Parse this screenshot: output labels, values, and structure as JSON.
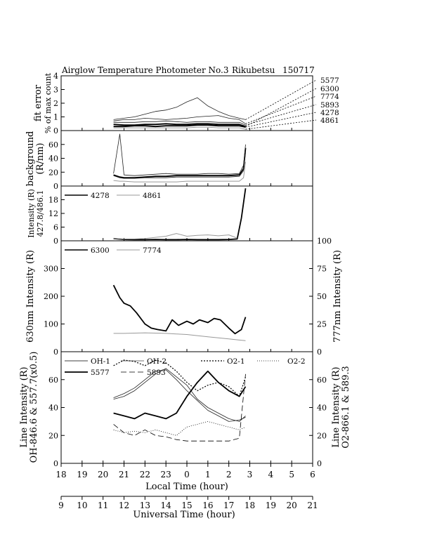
{
  "header": {
    "title": "Airglow Temperature Photometer No.3",
    "site": "Rikubetsu",
    "date": "150717"
  },
  "bottom_axes": {
    "local_label": "Local Time (hour)",
    "local_ticks": [
      "18",
      "19",
      "20",
      "21",
      "22",
      "23",
      "0",
      "1",
      "2",
      "3",
      "4",
      "5",
      "6"
    ],
    "ut_label": "Universal Time (hour)",
    "ut_ticks": [
      "9",
      "10",
      "11",
      "12",
      "13",
      "14",
      "15",
      "16",
      "17",
      "18",
      "19",
      "20",
      "21"
    ]
  },
  "chart_data": [
    {
      "id": "fit_error",
      "type": "line",
      "ylabel_lines": [
        "fit error",
        "% of max count"
      ],
      "yticks": [
        0,
        1,
        2,
        3,
        4
      ],
      "ylim": [
        0,
        4
      ],
      "xlim": [
        18,
        30
      ],
      "annotation_labels": [
        "5577",
        "6300",
        "7774",
        "5893",
        "4278",
        "4861"
      ],
      "series": [
        {
          "name": "5577",
          "style": "thin",
          "x": [
            20.5,
            21.0,
            21.5,
            22.0,
            22.5,
            23.0,
            23.5,
            24.0,
            24.5,
            25.0,
            25.5,
            26.0,
            26.5,
            26.8
          ],
          "y": [
            0.8,
            0.9,
            1.0,
            1.2,
            1.4,
            1.5,
            1.7,
            2.1,
            2.4,
            1.8,
            1.4,
            1.1,
            0.9,
            0.8
          ]
        },
        {
          "name": "6300",
          "style": "thick",
          "x": [
            20.5,
            21.0,
            21.5,
            22.0,
            22.5,
            23.0,
            23.5,
            24.0,
            24.5,
            25.0,
            25.5,
            26.0,
            26.5,
            26.8
          ],
          "y": [
            0.45,
            0.4,
            0.4,
            0.45,
            0.45,
            0.5,
            0.45,
            0.45,
            0.5,
            0.5,
            0.45,
            0.45,
            0.45,
            0.3
          ]
        },
        {
          "name": "7774",
          "style": "thin",
          "x": [
            20.5,
            21.0,
            21.5,
            22.0,
            22.5,
            23.0,
            23.5,
            24.0,
            24.5,
            25.0,
            25.5,
            26.0,
            26.5,
            26.8
          ],
          "y": [
            0.7,
            0.8,
            0.8,
            0.9,
            0.85,
            0.8,
            0.85,
            0.9,
            1.0,
            1.05,
            1.1,
            0.9,
            0.8,
            0.5
          ]
        },
        {
          "name": "5893",
          "style": "thin",
          "x": [
            20.5,
            21.0,
            21.5,
            22.0,
            22.5,
            23.0,
            23.5,
            24.0,
            24.5,
            25.0,
            25.5,
            26.0,
            26.5,
            26.8
          ],
          "y": [
            0.6,
            0.6,
            0.6,
            0.65,
            0.65,
            0.7,
            0.65,
            0.6,
            0.65,
            0.65,
            0.6,
            0.6,
            0.6,
            0.4
          ]
        },
        {
          "name": "4278",
          "style": "thick",
          "x": [
            20.5,
            21.0,
            21.5,
            22.0,
            22.5,
            23.0,
            23.5,
            24.0,
            24.5,
            25.0,
            25.5,
            26.0,
            26.5,
            26.8
          ],
          "y": [
            0.3,
            0.3,
            0.35,
            0.35,
            0.3,
            0.35,
            0.35,
            0.35,
            0.4,
            0.4,
            0.35,
            0.35,
            0.35,
            0.25
          ]
        },
        {
          "name": "4861",
          "style": "gray",
          "x": [
            20.5,
            21.0,
            21.5,
            22.0,
            22.5,
            23.0,
            23.5,
            24.0,
            24.5,
            25.0,
            25.5,
            26.0,
            26.5,
            26.8
          ],
          "y": [
            0.2,
            0.2,
            0.2,
            0.2,
            0.2,
            0.2,
            0.2,
            0.2,
            0.25,
            0.25,
            0.2,
            0.2,
            0.2,
            0.1
          ]
        }
      ]
    },
    {
      "id": "background",
      "type": "line",
      "ylabel_lines": [
        "background",
        "(R/nm)"
      ],
      "yticks": [
        0,
        20,
        40,
        60
      ],
      "ylim": [
        0,
        80
      ],
      "xlim": [
        18,
        30
      ],
      "series": [
        {
          "name": "6300",
          "style": "thick",
          "x": [
            20.5,
            20.8,
            21.0,
            21.5,
            22.0,
            22.5,
            23.0,
            23.5,
            24.0,
            24.5,
            25.0,
            25.5,
            26.0,
            26.5,
            26.7,
            26.8
          ],
          "y": [
            16,
            13,
            12,
            12,
            13,
            14,
            14,
            15,
            15,
            15,
            15,
            15,
            15,
            16,
            25,
            55
          ]
        },
        {
          "name": "5577",
          "style": "thin",
          "x": [
            20.5,
            20.8,
            21.0,
            21.5,
            22.0,
            22.5,
            23.0,
            23.5,
            24.0,
            24.5,
            25.0,
            25.5,
            26.0,
            26.5,
            26.7,
            26.8
          ],
          "y": [
            18,
            75,
            16,
            15,
            16,
            17,
            18,
            17,
            17,
            17,
            18,
            18,
            17,
            18,
            30,
            60
          ]
        },
        {
          "name": "7774",
          "style": "thin",
          "x": [
            20.5,
            20.8,
            21.0,
            21.5,
            22.0,
            22.5,
            23.0,
            23.5,
            24.0,
            24.5,
            25.0,
            25.5,
            26.0,
            26.5,
            26.7,
            26.8
          ],
          "y": [
            15,
            12,
            11,
            11,
            12,
            12,
            12,
            13,
            13,
            13,
            13,
            13,
            13,
            14,
            22,
            48
          ]
        },
        {
          "name": "4861",
          "style": "gray",
          "x": [
            20.5,
            20.8,
            21.0,
            21.5,
            22.0,
            22.5,
            23.0,
            23.5,
            24.0,
            24.5,
            25.0,
            25.5,
            26.0,
            26.5,
            26.7,
            26.8
          ],
          "y": [
            8,
            7,
            7,
            6,
            6,
            6,
            6,
            6,
            7,
            7,
            7,
            7,
            7,
            7,
            12,
            35
          ]
        }
      ]
    },
    {
      "id": "intensity_blue",
      "type": "line",
      "ylabel_lines": [
        "Intensity (R)",
        "427.8/486.1"
      ],
      "yticks": [
        0,
        6,
        12,
        18
      ],
      "ylim": [
        0,
        24
      ],
      "xlim": [
        18,
        30
      ],
      "legend": [
        "4278",
        "4861"
      ],
      "series": [
        {
          "name": "4278",
          "style": "thick",
          "x": [
            20.5,
            21.0,
            21.5,
            22.0,
            22.5,
            23.0,
            23.5,
            24.0,
            24.5,
            25.0,
            25.5,
            26.0,
            26.4,
            26.6,
            26.8
          ],
          "y": [
            1.0,
            0.6,
            0.5,
            0.5,
            0.6,
            0.5,
            0.5,
            0.6,
            0.5,
            0.5,
            0.5,
            0.6,
            0.8,
            10,
            23
          ]
        },
        {
          "name": "4861",
          "style": "gray",
          "x": [
            20.5,
            21.0,
            21.5,
            22.0,
            22.5,
            23.0,
            23.5,
            24.0,
            24.5,
            25.0,
            25.5,
            26.0,
            26.4
          ],
          "y": [
            1.0,
            0.8,
            0.8,
            1.0,
            1.5,
            2.0,
            3.2,
            2.0,
            2.4,
            2.6,
            2.2,
            2.6,
            1.2
          ]
        }
      ]
    },
    {
      "id": "oi_lines",
      "type": "line",
      "ylabel_left": "630nm Intensity (R)",
      "ylabel_right": "777nm Intensity (R)",
      "yticks_left": [
        0,
        100,
        200,
        300
      ],
      "ylim_left": [
        0,
        400
      ],
      "yticks_right": [
        0,
        25,
        50,
        75,
        100
      ],
      "ylim_right": [
        0,
        100
      ],
      "xlim": [
        18,
        30
      ],
      "legend": [
        "6300",
        "7774"
      ],
      "series": [
        {
          "name": "6300",
          "axis": "left",
          "style": "thick",
          "x": [
            20.5,
            20.8,
            21.0,
            21.3,
            21.6,
            22.0,
            22.3,
            22.6,
            23.0,
            23.3,
            23.6,
            24.0,
            24.3,
            24.6,
            25.0,
            25.3,
            25.6,
            26.0,
            26.3,
            26.6,
            26.8
          ],
          "y": [
            240,
            195,
            175,
            165,
            140,
            100,
            85,
            80,
            75,
            115,
            95,
            110,
            100,
            115,
            105,
            120,
            115,
            85,
            65,
            80,
            125
          ]
        },
        {
          "name": "7774",
          "axis": "right",
          "style": "gray",
          "x": [
            20.5,
            21.0,
            21.5,
            22.0,
            22.5,
            23.0,
            23.5,
            24.0,
            24.5,
            25.0,
            25.5,
            26.0,
            26.5,
            26.8
          ],
          "y": [
            16.5,
            16.5,
            16.8,
            17,
            16.8,
            16.5,
            16,
            15.5,
            14.5,
            13.5,
            12.5,
            11.5,
            10.5,
            10
          ]
        }
      ]
    },
    {
      "id": "oh_o2_lines",
      "type": "line",
      "ylabel_left_lines": [
        "Line Intensity (R)",
        "OH-846.6 & 557.7(x0.5)"
      ],
      "ylabel_right_lines": [
        "Line Intensity (R)",
        "O2-866.1 & 589.3"
      ],
      "yticks_left": [
        0,
        20,
        40,
        60
      ],
      "ylim_left": [
        0,
        80
      ],
      "yticks_right": [
        0,
        20,
        40,
        60
      ],
      "ylim_right": [
        0,
        80
      ],
      "xlim": [
        18,
        30
      ],
      "legend": [
        "OH-1",
        "OH-2",
        "O2-1",
        "O2-2",
        "5577",
        "5893"
      ],
      "series": [
        {
          "name": "OH-1",
          "axis": "left",
          "style": "thin",
          "x": [
            20.5,
            21.0,
            21.5,
            22.0,
            22.5,
            23.0,
            23.5,
            24.0,
            24.5,
            25.0,
            25.5,
            26.0,
            26.5,
            26.8
          ],
          "y": [
            46,
            48,
            52,
            58,
            64,
            68,
            62,
            56,
            46,
            40,
            36,
            32,
            30,
            34
          ]
        },
        {
          "name": "OH-2",
          "axis": "left",
          "style": "thin",
          "x": [
            20.5,
            21.0,
            21.5,
            22.0,
            22.5,
            23.0,
            23.5,
            24.0,
            24.5,
            25.0,
            25.5,
            26.0,
            26.5,
            26.8
          ],
          "y": [
            47,
            50,
            54,
            60,
            66,
            67,
            60,
            52,
            45,
            38,
            34,
            30,
            31,
            33
          ]
        },
        {
          "name": "O2-1",
          "axis": "right",
          "style": "dotted-bold",
          "x": [
            20.5,
            21.0,
            21.5,
            22.0,
            22.5,
            23.0,
            23.5,
            24.0,
            24.5,
            25.0,
            25.5,
            26.0,
            26.5,
            26.8
          ],
          "y": [
            70,
            74,
            73,
            70,
            74,
            72,
            66,
            58,
            52,
            56,
            58,
            55,
            48,
            62
          ]
        },
        {
          "name": "O2-2",
          "axis": "right",
          "style": "dotted",
          "x": [
            20.5,
            21.0,
            21.5,
            22.0,
            22.5,
            23.0,
            23.5,
            24.0,
            24.5,
            25.0,
            25.5,
            26.0,
            26.5,
            26.8
          ],
          "y": [
            24,
            22,
            23,
            22,
            24,
            22,
            20,
            26,
            28,
            30,
            28,
            26,
            24,
            26
          ]
        },
        {
          "name": "5577",
          "axis": "left",
          "style": "thick",
          "x": [
            20.5,
            21.0,
            21.5,
            22.0,
            22.5,
            23.0,
            23.5,
            24.0,
            24.5,
            25.0,
            25.5,
            26.0,
            26.5,
            26.8
          ],
          "y": [
            36,
            34,
            32,
            36,
            34,
            32,
            36,
            48,
            58,
            66,
            58,
            52,
            48,
            55
          ]
        },
        {
          "name": "5893",
          "axis": "right",
          "style": "dashed",
          "x": [
            20.5,
            21.0,
            21.5,
            22.0,
            22.5,
            23.0,
            23.5,
            24.0,
            24.5,
            25.0,
            25.5,
            26.0,
            26.5,
            26.8
          ],
          "y": [
            28,
            22,
            20,
            24,
            20,
            19,
            17,
            16,
            16,
            16,
            16,
            16,
            18,
            64
          ]
        }
      ]
    }
  ]
}
